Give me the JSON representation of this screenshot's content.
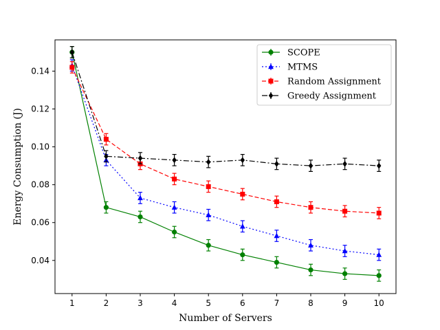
{
  "chart_data": {
    "type": "line",
    "xlabel": "Number of Servers",
    "ylabel": "Energy Consumption (J)",
    "x": [
      1,
      2,
      3,
      4,
      5,
      6,
      7,
      8,
      9,
      10
    ],
    "xlim": [
      0.5,
      10.5
    ],
    "ylim": [
      0.0225,
      0.1565
    ],
    "xticks": [
      "1",
      "2",
      "3",
      "4",
      "5",
      "6",
      "7",
      "8",
      "9",
      "10"
    ],
    "yticks": [
      "0.04",
      "0.06",
      "0.08",
      "0.10",
      "0.12",
      "0.14"
    ],
    "grid": false,
    "legend_position": "upper right",
    "series": [
      {
        "name": "SCOPE",
        "color": "#008000",
        "marker": "circle",
        "linestyle": "solid",
        "values": [
          0.15,
          0.068,
          0.063,
          0.055,
          0.048,
          0.043,
          0.039,
          0.035,
          0.033,
          0.032
        ],
        "errors": [
          0.003,
          0.003,
          0.003,
          0.003,
          0.003,
          0.003,
          0.003,
          0.003,
          0.003,
          0.003
        ]
      },
      {
        "name": "MTMS",
        "color": "#0000ff",
        "marker": "triangle",
        "linestyle": "dotted",
        "values": [
          0.143,
          0.093,
          0.073,
          0.068,
          0.064,
          0.058,
          0.053,
          0.048,
          0.045,
          0.043
        ],
        "errors": [
          0.003,
          0.003,
          0.003,
          0.003,
          0.003,
          0.003,
          0.003,
          0.003,
          0.003,
          0.003
        ]
      },
      {
        "name": "Random Assignment",
        "color": "#ff0000",
        "marker": "square",
        "linestyle": "dashed",
        "values": [
          0.142,
          0.104,
          0.091,
          0.083,
          0.079,
          0.075,
          0.071,
          0.068,
          0.066,
          0.065
        ],
        "errors": [
          0.003,
          0.003,
          0.003,
          0.003,
          0.003,
          0.003,
          0.003,
          0.003,
          0.003,
          0.003
        ]
      },
      {
        "name": "Greedy Assignment",
        "color": "#000000",
        "marker": "diamond",
        "linestyle": "dashdot",
        "values": [
          0.15,
          0.095,
          0.094,
          0.093,
          0.092,
          0.093,
          0.091,
          0.09,
          0.091,
          0.09
        ],
        "errors": [
          0.003,
          0.003,
          0.003,
          0.003,
          0.003,
          0.003,
          0.003,
          0.003,
          0.003,
          0.003
        ]
      }
    ]
  }
}
